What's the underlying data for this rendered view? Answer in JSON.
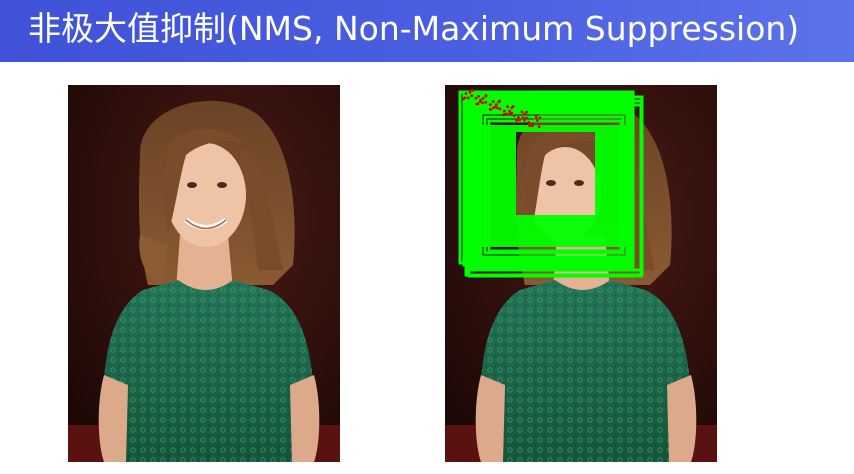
{
  "slide": {
    "title": "非极大值抑制(NMS, Non-Maximum Suppression)"
  },
  "photos": {
    "left": {
      "label": "portrait-original"
    },
    "right": {
      "label": "portrait-with-detections"
    }
  },
  "detections": {
    "box_color": "#00ff00",
    "dot_color": "#d40000",
    "box_count": 12
  },
  "colors": {
    "title_bar": "#4a5fe0",
    "title_text": "#ffffff",
    "background_dark": "#2a0c08",
    "dress_green": "#1f6b4a"
  }
}
